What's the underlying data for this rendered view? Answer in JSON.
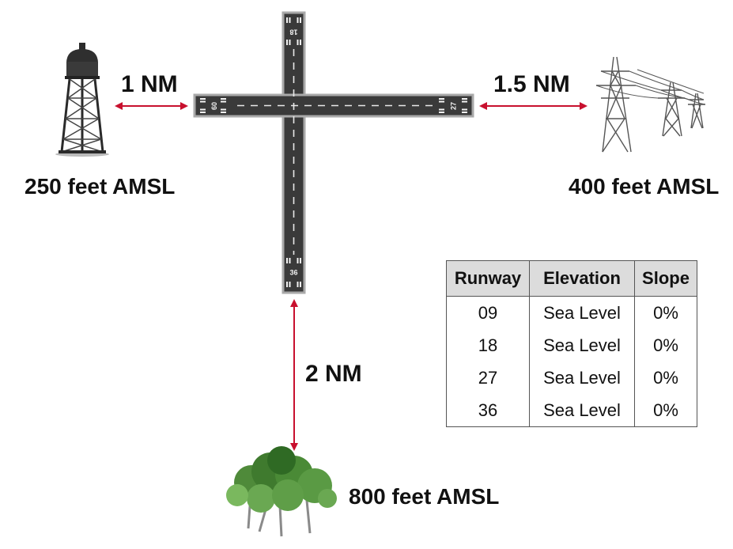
{
  "distances": {
    "water_tower": "1 NM",
    "power_lines": "1.5 NM",
    "trees": "2 NM"
  },
  "elevations": {
    "water_tower": "250 feet AMSL",
    "power_lines": "400 feet AMSL",
    "trees": "800 feet AMSL"
  },
  "runway_numbers": {
    "r09": "09",
    "r18": "18",
    "r27": "27",
    "r36": "36"
  },
  "table": {
    "headers": [
      "Runway",
      "Elevation",
      "Slope"
    ],
    "rows": [
      [
        "09",
        "Sea Level",
        "0%"
      ],
      [
        "18",
        "Sea Level",
        "0%"
      ],
      [
        "27",
        "Sea Level",
        "0%"
      ],
      [
        "36",
        "Sea Level",
        "0%"
      ]
    ]
  },
  "colors": {
    "arrow": "#c8102e",
    "runway_surface": "#3a3a3a",
    "runway_border": "#a9a9a9",
    "table_header_bg": "#dcdcdc"
  }
}
